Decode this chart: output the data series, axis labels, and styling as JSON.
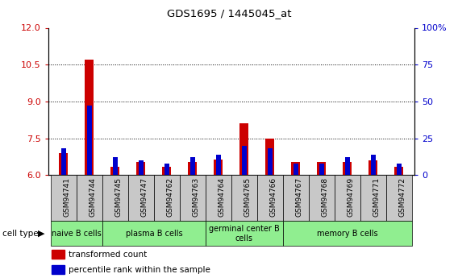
{
  "title": "GDS1695 / 1445045_at",
  "samples": [
    "GSM94741",
    "GSM94744",
    "GSM94745",
    "GSM94747",
    "GSM94762",
    "GSM94763",
    "GSM94764",
    "GSM94765",
    "GSM94766",
    "GSM94767",
    "GSM94768",
    "GSM94769",
    "GSM94771",
    "GSM94772"
  ],
  "transformed_count": [
    6.9,
    10.7,
    6.35,
    6.55,
    6.35,
    6.55,
    6.65,
    8.1,
    7.5,
    6.55,
    6.55,
    6.55,
    6.6,
    6.35
  ],
  "percentile_rank": [
    18,
    47,
    12,
    10,
    8,
    12,
    14,
    20,
    18,
    8,
    8,
    12,
    14,
    8
  ],
  "ylim_left": [
    6,
    12
  ],
  "ylim_right": [
    0,
    100
  ],
  "yticks_left": [
    6,
    7.5,
    9,
    10.5,
    12
  ],
  "yticks_right": [
    0,
    25,
    50,
    75,
    100
  ],
  "group_spans": [
    {
      "label": "naive B cells",
      "cols": [
        0,
        1
      ]
    },
    {
      "label": "plasma B cells",
      "cols": [
        2,
        3,
        4,
        5
      ]
    },
    {
      "label": "germinal center B\ncells",
      "cols": [
        6,
        7,
        8
      ]
    },
    {
      "label": "memory B cells",
      "cols": [
        9,
        10,
        11,
        12,
        13
      ]
    }
  ],
  "bar_color_red": "#cc0000",
  "bar_color_blue": "#0000cc",
  "tick_color_left": "#cc0000",
  "tick_color_right": "#0000cc",
  "bar_width": 0.35,
  "blue_bar_width": 0.18,
  "base_value": 6.0,
  "light_green": "#90ee90",
  "gray_bg": "#c8c8c8",
  "legend_items": [
    {
      "label": "transformed count",
      "color": "#cc0000"
    },
    {
      "label": "percentile rank within the sample",
      "color": "#0000cc"
    }
  ]
}
